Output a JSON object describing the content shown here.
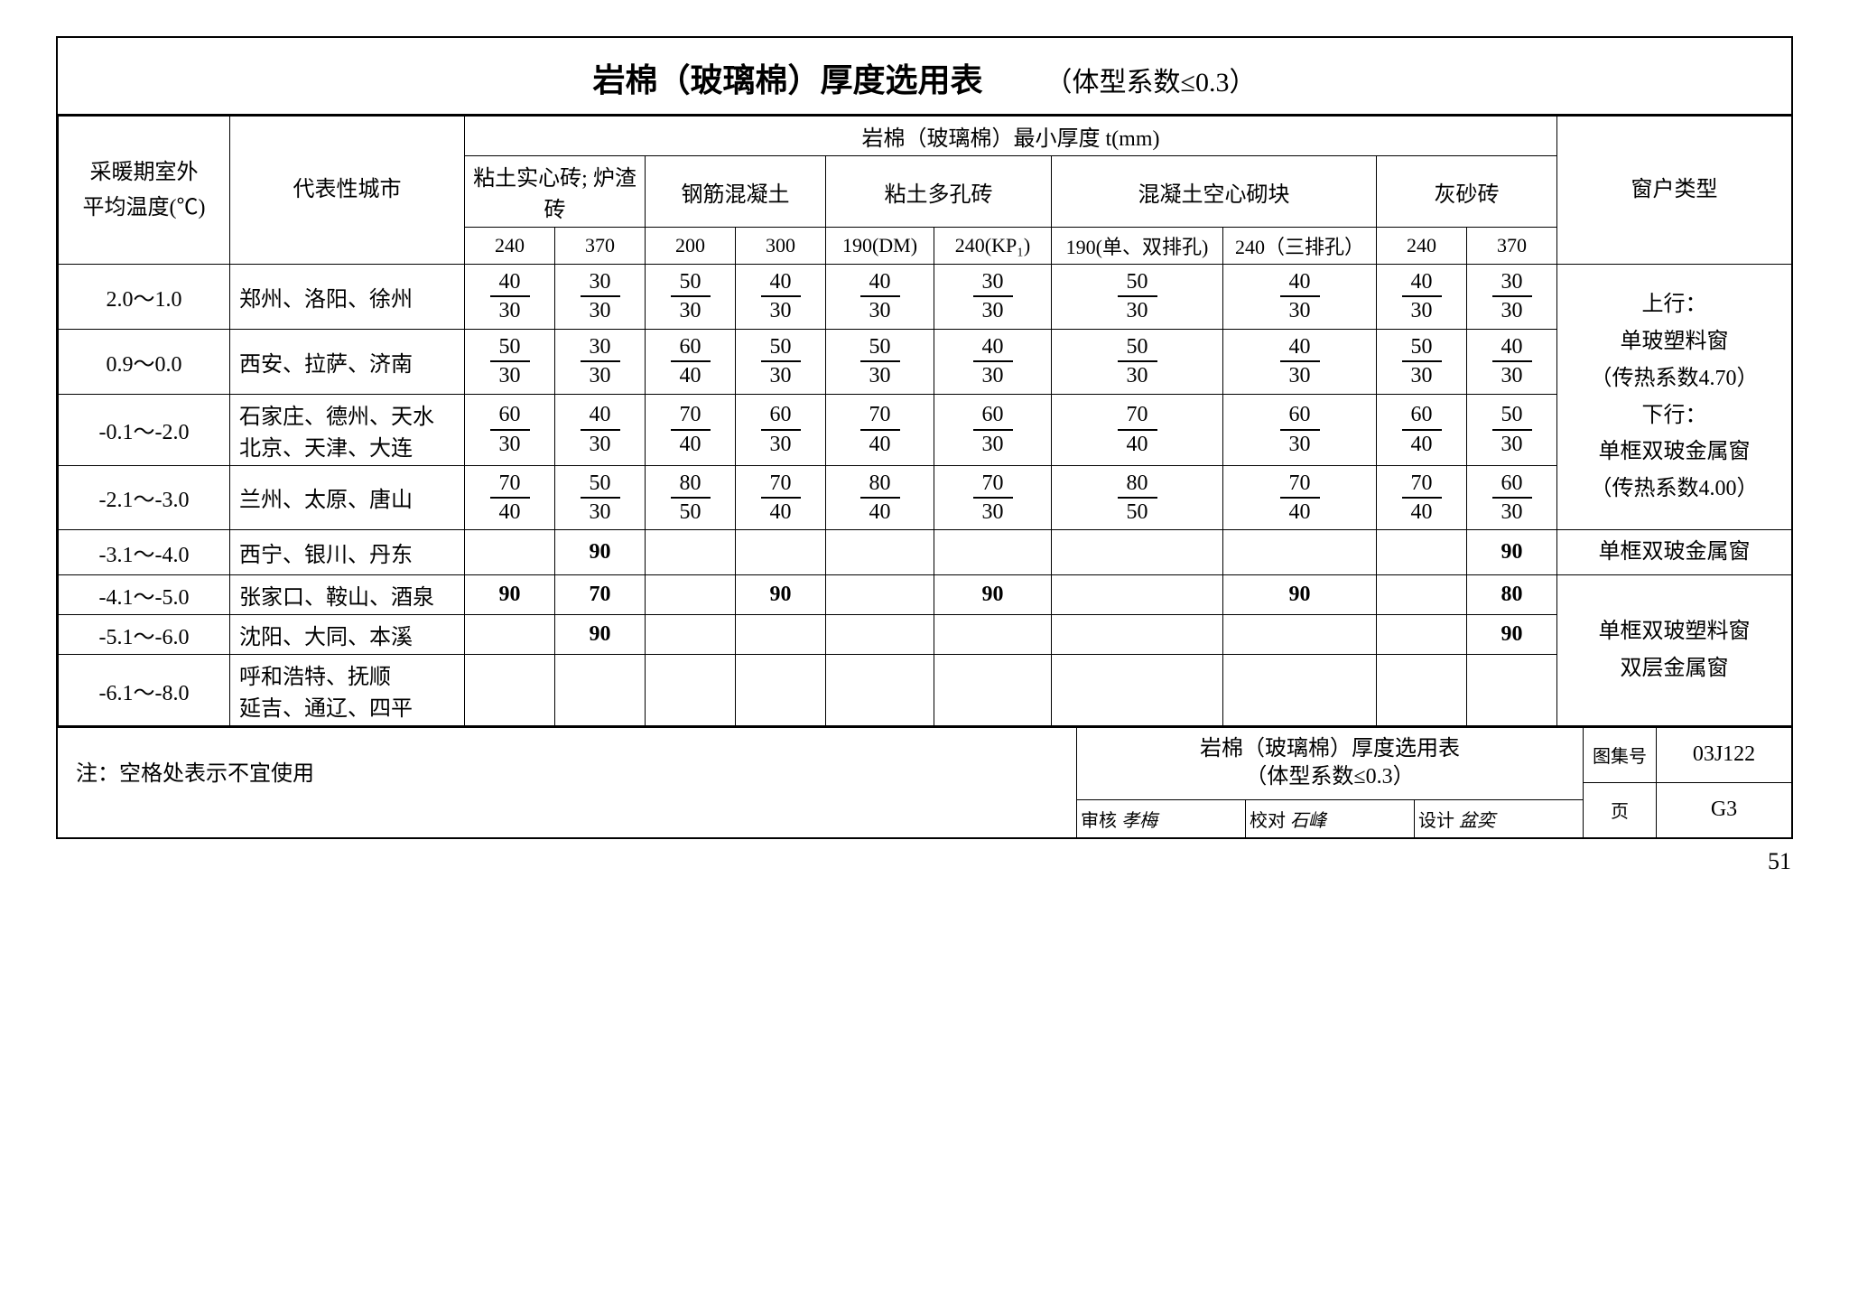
{
  "title": "岩棉（玻璃棉）厚度选用表",
  "subtitle": "（体型系数≤0.3）",
  "group_header": "岩棉（玻璃棉）最小厚度  t(mm)",
  "col_temp": "采暖期室外\n平均温度(℃)",
  "col_city": "代表性城市",
  "col_window": "窗户类型",
  "groups": [
    {
      "name": "粘土实心砖; 炉渣砖",
      "subs": [
        "240",
        "370"
      ]
    },
    {
      "name": "钢筋混凝土",
      "subs": [
        "200",
        "300"
      ]
    },
    {
      "name": "粘土多孔砖",
      "subs": [
        "190(DM)",
        "240(KP₁)"
      ]
    },
    {
      "name": "混凝土空心砌块",
      "subs": [
        "190(单、双排孔)",
        "240（三排孔）"
      ]
    },
    {
      "name": "灰砂砖",
      "subs": [
        "240",
        "370"
      ]
    }
  ],
  "rows_frac": [
    {
      "temp": "2.0～1.0",
      "city": "郑州、洛阳、徐州",
      "cells": [
        {
          "t": "40",
          "b": "30"
        },
        {
          "t": "30",
          "b": "30"
        },
        {
          "t": "50",
          "b": "30"
        },
        {
          "t": "40",
          "b": "30"
        },
        {
          "t": "40",
          "b": "30"
        },
        {
          "t": "30",
          "b": "30"
        },
        {
          "t": "50",
          "b": "30"
        },
        {
          "t": "40",
          "b": "30"
        },
        {
          "t": "40",
          "b": "30"
        },
        {
          "t": "30",
          "b": "30"
        }
      ]
    },
    {
      "temp": "0.9～0.0",
      "city": "西安、拉萨、济南",
      "cells": [
        {
          "t": "50",
          "b": "30"
        },
        {
          "t": "30",
          "b": "30"
        },
        {
          "t": "60",
          "b": "40"
        },
        {
          "t": "50",
          "b": "30"
        },
        {
          "t": "50",
          "b": "30"
        },
        {
          "t": "40",
          "b": "30"
        },
        {
          "t": "50",
          "b": "30"
        },
        {
          "t": "40",
          "b": "30"
        },
        {
          "t": "50",
          "b": "30"
        },
        {
          "t": "40",
          "b": "30"
        }
      ]
    },
    {
      "temp": "-0.1～-2.0",
      "city": "石家庄、德州、天水\n北京、天津、大连",
      "cells": [
        {
          "t": "60",
          "b": "30"
        },
        {
          "t": "40",
          "b": "30"
        },
        {
          "t": "70",
          "b": "40"
        },
        {
          "t": "60",
          "b": "30"
        },
        {
          "t": "70",
          "b": "40"
        },
        {
          "t": "60",
          "b": "30"
        },
        {
          "t": "70",
          "b": "40"
        },
        {
          "t": "60",
          "b": "30"
        },
        {
          "t": "60",
          "b": "40"
        },
        {
          "t": "50",
          "b": "30"
        }
      ]
    },
    {
      "temp": "-2.1～-3.0",
      "city": "兰州、太原、唐山",
      "cells": [
        {
          "t": "70",
          "b": "40"
        },
        {
          "t": "50",
          "b": "30"
        },
        {
          "t": "80",
          "b": "50"
        },
        {
          "t": "70",
          "b": "40"
        },
        {
          "t": "80",
          "b": "40"
        },
        {
          "t": "70",
          "b": "30"
        },
        {
          "t": "80",
          "b": "50"
        },
        {
          "t": "70",
          "b": "40"
        },
        {
          "t": "70",
          "b": "40"
        },
        {
          "t": "60",
          "b": "30"
        }
      ]
    }
  ],
  "notes_block": "上行：\n单玻塑料窗\n（传热系数4.70）\n下行：\n单框双玻金属窗\n（传热系数4.00）",
  "rows_simple": [
    {
      "temp": "-3.1～-4.0",
      "city": "西宁、银川、丹东",
      "cells": [
        "",
        "90",
        "",
        "",
        "",
        "",
        "",
        "",
        "",
        "90"
      ],
      "win": "单框双玻金属窗",
      "win_rows": 1
    },
    {
      "temp": "-4.1～-5.0",
      "city": "张家口、鞍山、酒泉",
      "cells": [
        "90",
        "70",
        "",
        "90",
        "",
        "90",
        "",
        "90",
        "",
        "80"
      ],
      "win": "单框双玻塑料窗\n双层金属窗",
      "win_rows": 3
    },
    {
      "temp": "-5.1～-6.0",
      "city": "沈阳、大同、本溪",
      "cells": [
        "",
        "90",
        "",
        "",
        "",
        "",
        "",
        "",
        "",
        "90"
      ]
    },
    {
      "temp": "-6.1～-8.0",
      "city": "呼和浩特、抚顺\n延吉、通辽、四平",
      "cells": [
        "",
        "",
        "",
        "",
        "",
        "",
        "",
        "",
        "",
        ""
      ]
    }
  ],
  "footnote": "注：空格处表示不宜使用",
  "footer_title": "岩棉（玻璃棉）厚度选用表\n（体型系数≤0.3）",
  "signs": [
    {
      "lbl": "审核",
      "val": "孝梅"
    },
    {
      "lbl": "校对",
      "val": "石峰"
    },
    {
      "lbl": "设计",
      "val": "盆奕"
    }
  ],
  "meta": [
    {
      "lbl": "图集号",
      "val": "03J122"
    },
    {
      "lbl": "页",
      "val": "G3"
    }
  ],
  "page_number": "51",
  "colors": {
    "border": "#000000",
    "bg": "#ffffff",
    "text": "#000000"
  }
}
